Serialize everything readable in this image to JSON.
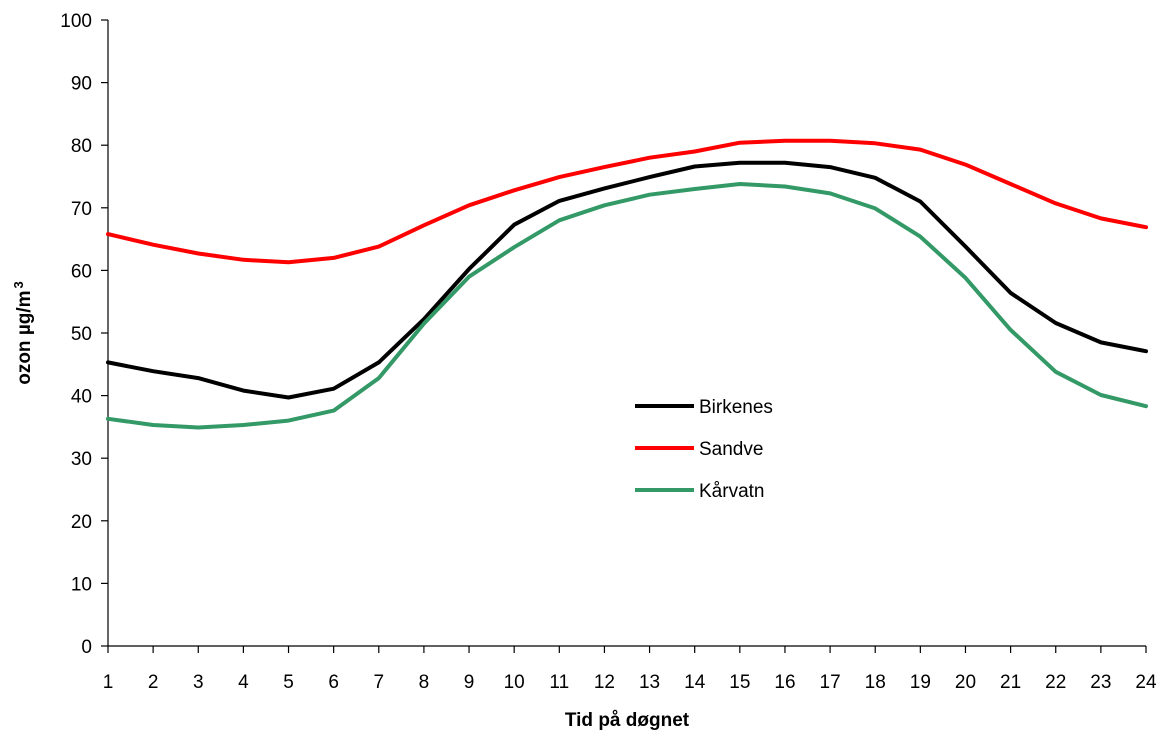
{
  "chart_data": {
    "type": "line",
    "title": "",
    "xlabel": "Tid på døgnet",
    "ylabel": "ozon µg/m³",
    "ylabel_main": "ozon µg/m",
    "ylabel_sup": "3",
    "x": [
      1,
      2,
      3,
      4,
      5,
      6,
      7,
      8,
      9,
      10,
      11,
      12,
      13,
      14,
      15,
      16,
      17,
      18,
      19,
      20,
      21,
      22,
      23,
      24
    ],
    "xticks": [
      "1",
      "2",
      "3",
      "4",
      "5",
      "6",
      "7",
      "8",
      "9",
      "10",
      "11",
      "12",
      "13",
      "14",
      "15",
      "16",
      "17",
      "18",
      "19",
      "20",
      "21",
      "22",
      "23",
      "24"
    ],
    "ylim": [
      0,
      100
    ],
    "yticks": [
      "0",
      "10",
      "20",
      "30",
      "40",
      "50",
      "60",
      "70",
      "80",
      "90",
      "100"
    ],
    "grid": false,
    "legend_position": "center-right, inside plot",
    "series": [
      {
        "name": "Birkenes",
        "color": "#000000",
        "values": [
          45.3,
          43.9,
          42.8,
          40.8,
          39.7,
          41.1,
          45.3,
          52.2,
          60.2,
          67.3,
          71.1,
          73.1,
          74.9,
          76.6,
          77.2,
          77.2,
          76.5,
          74.8,
          71.0,
          63.8,
          56.4,
          51.6,
          48.5,
          47.1
        ]
      },
      {
        "name": "Sandve",
        "color": "#ff0000",
        "values": [
          65.8,
          64.1,
          62.7,
          61.7,
          61.3,
          62.0,
          63.8,
          67.2,
          70.4,
          72.8,
          74.9,
          76.5,
          78.0,
          79.0,
          80.4,
          80.7,
          80.7,
          80.3,
          79.3,
          76.9,
          73.8,
          70.7,
          68.3,
          66.9
        ]
      },
      {
        "name": "Kårvatn",
        "color": "#339966",
        "values": [
          36.3,
          35.3,
          34.9,
          35.3,
          36.0,
          37.6,
          42.8,
          51.5,
          59.0,
          63.7,
          68.0,
          70.4,
          72.1,
          73.0,
          73.8,
          73.4,
          72.3,
          69.9,
          65.4,
          58.8,
          50.5,
          43.8,
          40.1,
          38.3
        ]
      }
    ]
  }
}
